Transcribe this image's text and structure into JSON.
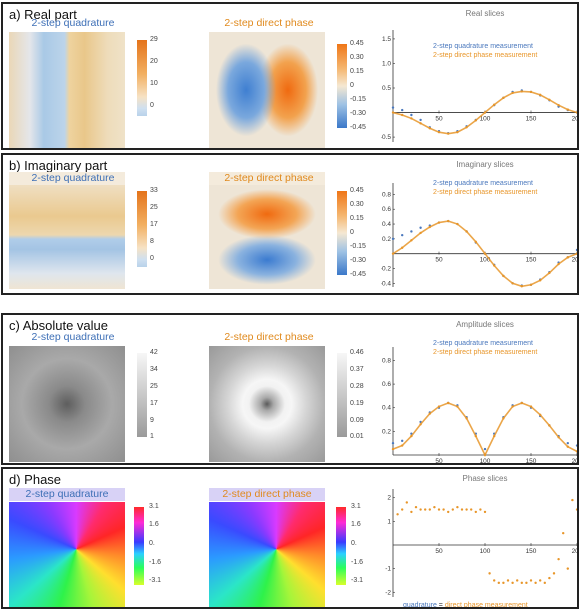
{
  "colors": {
    "quad": "#4a78bd",
    "phase": "#e8962a",
    "axis": "#333333"
  },
  "panels": [
    {
      "title": "a) Real part",
      "left_label": "2-step quadrature",
      "right_label": "2-step direct phase",
      "left_ticks": [
        "29",
        "20",
        "10",
        "0"
      ],
      "right_ticks": [
        "0.45",
        "0.30",
        "0.15",
        "0",
        "-0.15",
        "-0.30",
        "-0.45"
      ],
      "plot": {
        "title": "Real slices",
        "legend": [
          "2-step quadrature measurement",
          "2-step direct phase measurement"
        ],
        "xticks": [
          "50",
          "100",
          "150",
          "200"
        ],
        "yticks": [
          "1.5",
          "1.0",
          "0.5",
          "-0.5"
        ]
      }
    },
    {
      "title": "b) Imaginary part",
      "left_label": "2-step quadrature",
      "right_label": "2-step direct phase",
      "left_ticks": [
        "33",
        "25",
        "17",
        "8",
        "0"
      ],
      "right_ticks": [
        "0.45",
        "0.30",
        "0.15",
        "0",
        "-0.15",
        "-0.30",
        "-0.45"
      ],
      "plot": {
        "title": "Imaginary slices",
        "legend": [
          "2-step quadrature measurement",
          "2-step direct phase measurement"
        ],
        "xticks": [
          "50",
          "100",
          "150",
          "200"
        ],
        "yticks": [
          "0.8",
          "0.6",
          "0.4",
          "0.2",
          "-0.2",
          "-0.4"
        ]
      }
    },
    {
      "title": "c) Absolute value",
      "left_label": "2-step quadrature",
      "right_label": "2-step direct phase",
      "left_ticks": [
        "42",
        "34",
        "25",
        "17",
        "9",
        "1"
      ],
      "right_ticks": [
        "0.46",
        "0.37",
        "0.28",
        "0.19",
        "0.09",
        "0.01"
      ],
      "plot": {
        "title": "Amplitude slices",
        "legend": [
          "2-step quadrature measurement",
          "2-step direct phase measurement"
        ],
        "xticks": [
          "50",
          "100",
          "150",
          "200"
        ],
        "yticks": [
          "0.8",
          "0.6",
          "0.4",
          "0.2"
        ]
      }
    },
    {
      "title": "d) Phase",
      "left_label": "2-step quadrature",
      "right_label": "2-step direct phase",
      "left_ticks": [
        "3.1",
        "1.6",
        "0.",
        "-1.6",
        "-3.1"
      ],
      "right_ticks": [
        "3.1",
        "1.6",
        "0.",
        "-1.6",
        "-3.1"
      ],
      "plot": {
        "title": "Phase slices",
        "legend_parts": [
          "quadrature",
          " = ",
          "direct phase measurement"
        ],
        "xticks": [
          "50",
          "100",
          "150",
          "200"
        ],
        "yticks": [
          "2",
          "1",
          "-1",
          "-2"
        ]
      }
    }
  ],
  "chart_data": [
    {
      "type": "scatter",
      "title": "Real slices",
      "xlim": [
        0,
        200
      ],
      "ylim": [
        -0.6,
        1.6
      ],
      "series": [
        {
          "name": "2-step quadrature measurement",
          "x": [
            0,
            10,
            20,
            30,
            40,
            50,
            60,
            70,
            80,
            90,
            100,
            110,
            120,
            130,
            140,
            150,
            160,
            170,
            180,
            190,
            200
          ],
          "y": [
            0.1,
            0.05,
            -0.05,
            -0.15,
            -0.3,
            -0.38,
            -0.42,
            -0.38,
            -0.28,
            -0.15,
            0.0,
            0.15,
            0.3,
            0.42,
            0.45,
            0.42,
            0.35,
            0.25,
            0.12,
            0.05,
            0.0
          ]
        },
        {
          "name": "2-step direct phase measurement",
          "x": [
            0,
            10,
            20,
            30,
            40,
            50,
            60,
            70,
            80,
            90,
            100,
            110,
            120,
            130,
            140,
            150,
            160,
            170,
            180,
            190,
            200
          ],
          "y": [
            0.0,
            -0.05,
            -0.12,
            -0.22,
            -0.32,
            -0.4,
            -0.43,
            -0.4,
            -0.3,
            -0.16,
            0.0,
            0.16,
            0.3,
            0.4,
            0.43,
            0.42,
            0.36,
            0.26,
            0.15,
            0.06,
            0.0
          ]
        }
      ]
    },
    {
      "type": "scatter",
      "title": "Imaginary slices",
      "xlim": [
        0,
        200
      ],
      "ylim": [
        -0.45,
        0.9
      ],
      "series": [
        {
          "name": "2-step quadrature measurement",
          "x": [
            0,
            10,
            20,
            30,
            40,
            50,
            60,
            70,
            80,
            90,
            100,
            110,
            120,
            130,
            140,
            150,
            160,
            170,
            180,
            190,
            200
          ],
          "y": [
            0.2,
            0.25,
            0.3,
            0.35,
            0.38,
            0.42,
            0.44,
            0.4,
            0.3,
            0.15,
            0.0,
            -0.15,
            -0.3,
            -0.4,
            -0.43,
            -0.42,
            -0.35,
            -0.25,
            -0.12,
            -0.05,
            0.05
          ]
        },
        {
          "name": "2-step direct phase measurement",
          "x": [
            0,
            10,
            20,
            30,
            40,
            50,
            60,
            70,
            80,
            90,
            100,
            110,
            120,
            130,
            140,
            150,
            160,
            170,
            180,
            190,
            200
          ],
          "y": [
            0.0,
            0.08,
            0.18,
            0.28,
            0.36,
            0.42,
            0.44,
            0.4,
            0.3,
            0.16,
            0.0,
            -0.16,
            -0.3,
            -0.4,
            -0.44,
            -0.42,
            -0.36,
            -0.26,
            -0.14,
            -0.05,
            0.0
          ]
        }
      ]
    },
    {
      "type": "scatter",
      "title": "Amplitude slices",
      "xlim": [
        0,
        200
      ],
      "ylim": [
        0,
        0.88
      ],
      "series": [
        {
          "name": "2-step quadrature measurement",
          "x": [
            0,
            10,
            20,
            30,
            40,
            50,
            60,
            70,
            80,
            90,
            100,
            110,
            120,
            130,
            140,
            150,
            160,
            170,
            180,
            190,
            200
          ],
          "y": [
            0.1,
            0.12,
            0.18,
            0.28,
            0.36,
            0.4,
            0.44,
            0.42,
            0.32,
            0.18,
            0.05,
            0.18,
            0.32,
            0.42,
            0.44,
            0.4,
            0.33,
            0.25,
            0.16,
            0.1,
            0.08
          ]
        },
        {
          "name": "2-step direct phase measurement",
          "x": [
            0,
            10,
            20,
            30,
            40,
            50,
            60,
            70,
            80,
            90,
            100,
            110,
            120,
            130,
            140,
            150,
            160,
            170,
            180,
            190,
            200
          ],
          "y": [
            0.05,
            0.08,
            0.16,
            0.26,
            0.35,
            0.41,
            0.44,
            0.41,
            0.31,
            0.16,
            0.0,
            0.16,
            0.31,
            0.41,
            0.44,
            0.41,
            0.34,
            0.25,
            0.15,
            0.07,
            0.03
          ]
        }
      ]
    },
    {
      "type": "scatter",
      "title": "Phase slices",
      "xlim": [
        0,
        200
      ],
      "ylim": [
        -2.2,
        2.2
      ],
      "series": [
        {
          "name": "direct phase measurement",
          "x": [
            5,
            10,
            15,
            20,
            25,
            30,
            35,
            40,
            45,
            50,
            55,
            60,
            65,
            70,
            75,
            80,
            85,
            90,
            95,
            100,
            105,
            110,
            115,
            120,
            125,
            130,
            135,
            140,
            145,
            150,
            155,
            160,
            165,
            170,
            175,
            180,
            185,
            190,
            195,
            200
          ],
          "y": [
            1.3,
            1.5,
            1.8,
            1.4,
            1.6,
            1.5,
            1.5,
            1.5,
            1.6,
            1.5,
            1.5,
            1.4,
            1.5,
            1.6,
            1.5,
            1.5,
            1.5,
            1.4,
            1.5,
            1.4,
            -1.2,
            -1.5,
            -1.6,
            -1.6,
            -1.5,
            -1.6,
            -1.5,
            -1.6,
            -1.6,
            -1.5,
            -1.6,
            -1.5,
            -1.6,
            -1.4,
            -1.2,
            -0.6,
            0.5,
            -1.0,
            1.9,
            1.5
          ]
        }
      ]
    }
  ]
}
